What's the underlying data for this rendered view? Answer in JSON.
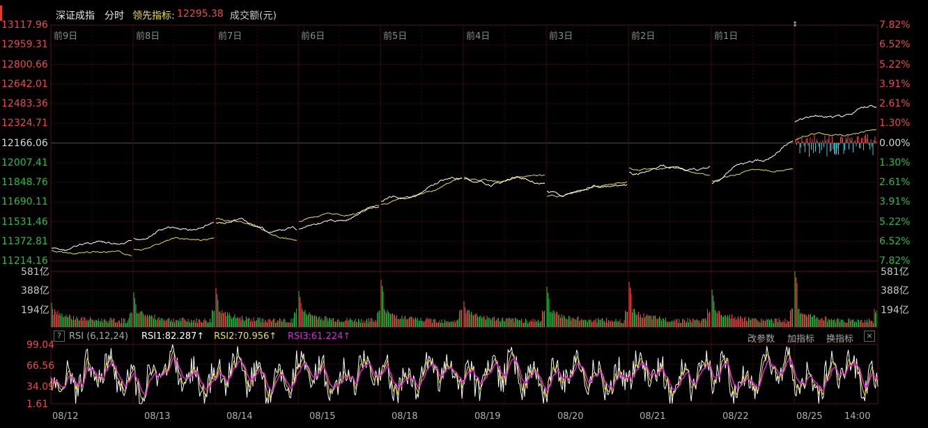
{
  "header": {
    "index_name": "深证成指",
    "mode": "分时",
    "leading_label": "领先指标:",
    "leading_value": "12295.38",
    "volume_label": "成交额(元)"
  },
  "price_axis": {
    "left_ticks": [
      "13117.96",
      "12959.31",
      "12800.66",
      "12642.01",
      "12483.36",
      "12324.71",
      "12166.06",
      "12007.41",
      "11848.76",
      "11690.11",
      "11531.46",
      "11372.81",
      "11214.16"
    ],
    "right_ticks": [
      "7.82%",
      "6.52%",
      "5.22%",
      "3.91%",
      "2.61%",
      "1.30%",
      "0.00%",
      "1.30%",
      "2.61%",
      "3.91%",
      "5.22%",
      "6.52%",
      "7.82%"
    ]
  },
  "day_labels": [
    "前9日",
    "前8日",
    "前7日",
    "前6日",
    "前5日",
    "前4日",
    "前3日",
    "前2日",
    "前1日"
  ],
  "volume_axis": {
    "ticks": [
      "581亿",
      "388亿",
      "194亿"
    ]
  },
  "rsi": {
    "help": "?",
    "title": "RSI (6,12,24)",
    "rsi1": "RSI1:82.287↑",
    "rsi2": "RSI2:70.956↑",
    "rsi3": "RSI3:61.224↑",
    "btn_params": "改参数",
    "btn_add": "加指标",
    "btn_switch": "换指标",
    "close": "×",
    "ticks": [
      "99.04",
      "66.56",
      "34.09",
      "1.61"
    ]
  },
  "dates": [
    "08/12",
    "08/13",
    "08/14",
    "08/15",
    "08/18",
    "08/19",
    "08/20",
    "08/21",
    "08/22",
    "08/25",
    "14:00"
  ],
  "colors": {
    "up": "#f04848",
    "down": "#20c040",
    "price_line": "#ffffff",
    "avg_line": "#e8e030",
    "rsi1": "#ffffff",
    "rsi2": "#f0e020",
    "rsi3": "#e020e0",
    "grid": "#3a0c0c",
    "neg_bar": "#30d0e0"
  }
}
